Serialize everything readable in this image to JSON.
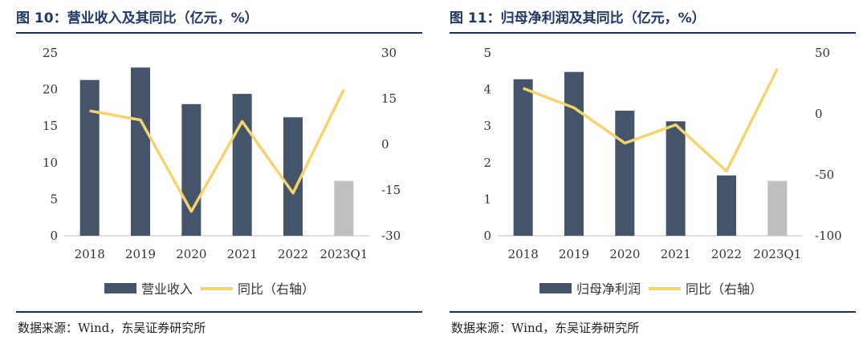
{
  "source_label": "数据来源：Wind，东吴证券研究所",
  "chart_data": [
    {
      "type": "bar",
      "title": "图 10：营业收入及其同比（亿元，%）",
      "categories": [
        "2018",
        "2019",
        "2020",
        "2021",
        "2022",
        "2023Q1"
      ],
      "series": [
        {
          "name": "营业收入",
          "kind": "bar",
          "axis": "left",
          "values": [
            21.3,
            23.0,
            18.0,
            19.4,
            16.2,
            7.5
          ],
          "colors": [
            "#44546a",
            "#44546a",
            "#44546a",
            "#44546a",
            "#44546a",
            "#bfbfbf"
          ]
        },
        {
          "name": "同比（右轴）",
          "kind": "line",
          "axis": "right",
          "color": "#f7d46b",
          "values": [
            11.0,
            8.0,
            -22.0,
            7.5,
            -16.0,
            18.0
          ]
        }
      ],
      "y_left": {
        "min": 0,
        "max": 25,
        "ticks": [
          0,
          5,
          10,
          15,
          20,
          25
        ]
      },
      "y_right": {
        "min": -30,
        "max": 30,
        "ticks": [
          -30,
          -15,
          0,
          15,
          30
        ]
      },
      "legend": [
        "营业收入",
        "同比（右轴）"
      ],
      "legend_position": "bottom"
    },
    {
      "type": "bar",
      "title": "图 11：归母净利润及其同比（亿元，%）",
      "categories": [
        "2018",
        "2019",
        "2020",
        "2021",
        "2022",
        "2023Q1"
      ],
      "series": [
        {
          "name": "归母净利润",
          "kind": "bar",
          "axis": "left",
          "values": [
            4.28,
            4.48,
            3.42,
            3.13,
            1.65,
            1.5
          ],
          "colors": [
            "#44546a",
            "#44546a",
            "#44546a",
            "#44546a",
            "#44546a",
            "#bfbfbf"
          ]
        },
        {
          "name": "同比（右轴）",
          "kind": "line",
          "axis": "right",
          "color": "#f7d46b",
          "values": [
            21.0,
            5.0,
            -24.0,
            -9.0,
            -47.0,
            37.0
          ]
        }
      ],
      "y_left": {
        "min": 0,
        "max": 5,
        "ticks": [
          0,
          1,
          2,
          3,
          4,
          5
        ]
      },
      "y_right": {
        "min": -100,
        "max": 50,
        "ticks": [
          -100,
          -50,
          0,
          50
        ]
      },
      "legend": [
        "归母净利润",
        "同比（右轴）"
      ],
      "legend_position": "bottom"
    }
  ]
}
